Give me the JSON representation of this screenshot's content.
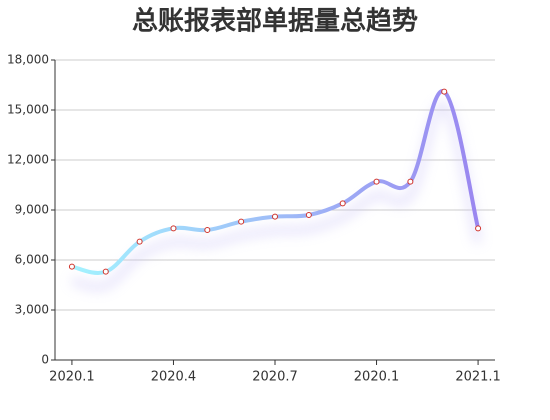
{
  "chart_data": {
    "type": "line",
    "title": "总账报表部单据量总趋势",
    "categories": [
      "2020.1",
      null,
      null,
      "2020.4",
      null,
      null,
      "2020.7",
      null,
      null,
      "2020.1",
      null,
      null,
      "2021.1"
    ],
    "values": [
      5600,
      5300,
      7100,
      7900,
      7800,
      8300,
      8600,
      8700,
      9400,
      10700,
      10700,
      16100,
      7900
    ],
    "gradient": [
      "#a3f3ff",
      "#9a86f0"
    ],
    "marker_color": "#d0342c",
    "ylim": [
      0,
      18000
    ],
    "yticks": [
      0,
      {
        "value": 3000,
        "label": "3,000"
      },
      {
        "value": 6000,
        "label": "6,000"
      },
      {
        "value": 9000,
        "label": "9,000"
      },
      {
        "value": 12000,
        "label": "12,000"
      },
      {
        "value": 15000,
        "label": "15,000"
      },
      {
        "value": 18000,
        "label": "18,000"
      }
    ],
    "grid": true
  }
}
